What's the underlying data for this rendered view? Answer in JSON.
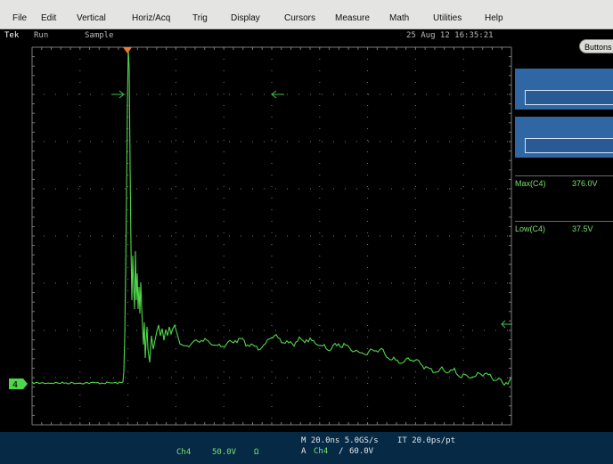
{
  "menu": {
    "items": [
      "File",
      "Edit",
      "Vertical",
      "Horiz/Acq",
      "Trig",
      "Display",
      "Cursors",
      "Measure",
      "Math",
      "Utilities",
      "Help"
    ]
  },
  "status": {
    "brand": "Tek",
    "run_state": "Run",
    "acq_mode": "Sample",
    "timestamp": "25 Aug 12 16:35:21"
  },
  "right_panel": {
    "button_label": "Buttons",
    "measurements": [
      {
        "label": "Max(C4)",
        "value": "376.0V"
      },
      {
        "label": "Low(C4)",
        "value": "37.5V"
      }
    ]
  },
  "bottom": {
    "channel": "Ch4",
    "scale": "50.0V",
    "coupling": "Ω",
    "horizontal": "M 20.0ns 5.0GS/s",
    "interp": "IT 20.0ps/pt",
    "trigger_prefix": "A",
    "trigger_source": "Ch4",
    "trigger_slope": "∕",
    "trigger_level": "60.0V"
  },
  "screen": {
    "channel_marker": "4",
    "colors": {
      "trace": "#4fd64a",
      "grid": "#7a7a7a",
      "trigger_marker": "#f07830",
      "marker": "#3fc24a"
    }
  },
  "icons": [
    "trigger-position-marker",
    "cursor-arrow-right-icon",
    "cursor-arrow-left-icon",
    "trigger-level-arrow-icon",
    "channel-4-ground-marker"
  ]
}
